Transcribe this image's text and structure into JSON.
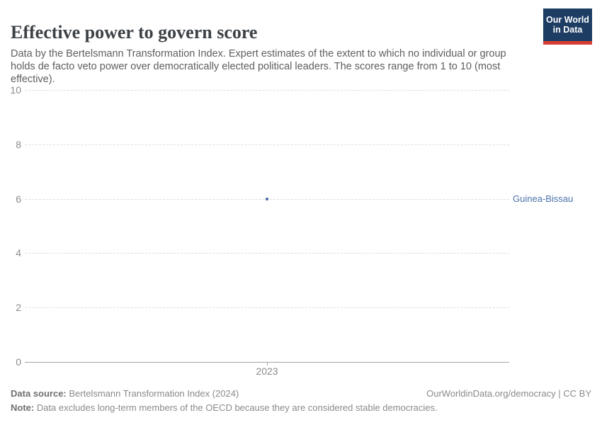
{
  "header": {
    "title": "Effective power to govern score",
    "subtitle": "Data by the Bertelsmann Transformation Index. Expert estimates of the extent to which no individual or group holds de facto veto power over democratically elected political leaders. The scores range from 1 to 10 (most effective)."
  },
  "logo": {
    "line1": "Our World",
    "line2": "in Data",
    "bg_color": "#1d3d63",
    "accent_color": "#d63e32"
  },
  "chart_data": {
    "type": "scatter",
    "title": "Effective power to govern score",
    "x": [
      2023
    ],
    "xticks": [
      "2023"
    ],
    "series": [
      {
        "name": "Guinea-Bissau",
        "values": [
          6
        ],
        "color": "#4a68a5"
      }
    ],
    "entity_label": "Guinea-Bissau",
    "entity_label_color": "#4a72ab",
    "ylim": [
      0,
      10
    ],
    "yticks": [
      10,
      8,
      6,
      4,
      2,
      0
    ],
    "grid": "horizontal-dashed",
    "gridline_color": "#dedede",
    "axis_line_color": "#a3a3a3",
    "legend_position": "entity-label-right"
  },
  "footer": {
    "data_source_label": "Data source:",
    "data_source_value": " Bertelsmann Transformation Index (2024)",
    "attribution": "OurWorldinData.org/democracy | CC BY",
    "note_label": "Note:",
    "note_value": " Data excludes long-term members of the OECD because they are considered stable democracies."
  }
}
